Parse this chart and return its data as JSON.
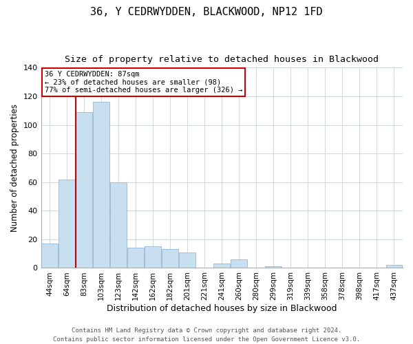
{
  "title": "36, Y CEDRWYDDEN, BLACKWOOD, NP12 1FD",
  "subtitle": "Size of property relative to detached houses in Blackwood",
  "xlabel": "Distribution of detached houses by size in Blackwood",
  "ylabel": "Number of detached properties",
  "bar_labels": [
    "44sqm",
    "64sqm",
    "83sqm",
    "103sqm",
    "123sqm",
    "142sqm",
    "162sqm",
    "182sqm",
    "201sqm",
    "221sqm",
    "241sqm",
    "260sqm",
    "280sqm",
    "299sqm",
    "319sqm",
    "339sqm",
    "358sqm",
    "378sqm",
    "398sqm",
    "417sqm",
    "437sqm"
  ],
  "bar_values": [
    17,
    62,
    109,
    116,
    60,
    14,
    15,
    13,
    11,
    0,
    3,
    6,
    0,
    1,
    0,
    0,
    0,
    0,
    0,
    0,
    2
  ],
  "bar_color": "#c8dff0",
  "bar_edge_color": "#92b8d8",
  "highlight_line_color": "#cc0000",
  "annotation_line1": "36 Y CEDRWYDDEN: 87sqm",
  "annotation_line2": "← 23% of detached houses are smaller (98)",
  "annotation_line3": "77% of semi-detached houses are larger (326) →",
  "annotation_box_edge_color": "#cc0000",
  "annotation_box_facecolor": "#ffffff",
  "ylim": [
    0,
    140
  ],
  "yticks": [
    0,
    20,
    40,
    60,
    80,
    100,
    120,
    140
  ],
  "footer_line1": "Contains HM Land Registry data © Crown copyright and database right 2024.",
  "footer_line2": "Contains public sector information licensed under the Open Government Licence v3.0.",
  "bg_color": "#ffffff",
  "grid_color": "#d0d8e0",
  "title_fontsize": 11,
  "subtitle_fontsize": 9.5,
  "xlabel_fontsize": 9,
  "ylabel_fontsize": 8.5,
  "footer_fontsize": 6.5,
  "tick_fontsize": 7.5,
  "ytick_fontsize": 8
}
